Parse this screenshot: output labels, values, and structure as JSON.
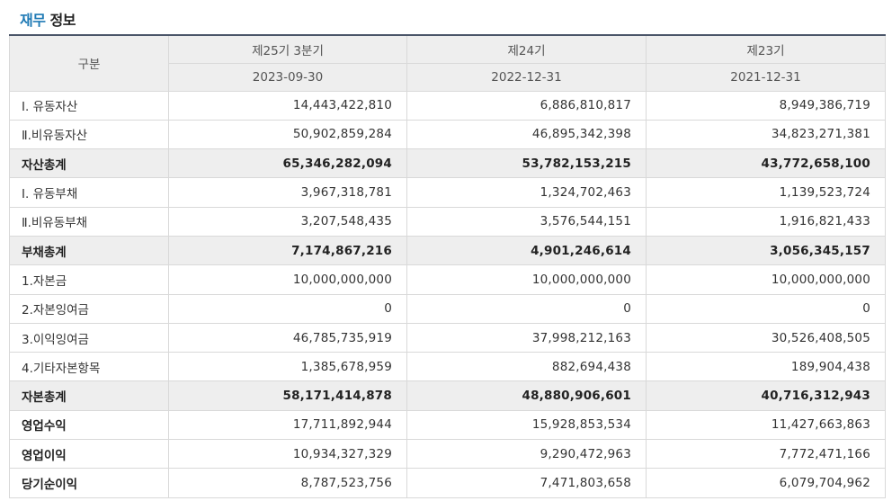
{
  "section": {
    "title_accent": "재무",
    "title_rest": "정보"
  },
  "table": {
    "header": {
      "gubun": "구분",
      "periods": [
        {
          "name": "제25기 3분기",
          "date": "2023-09-30"
        },
        {
          "name": "제24기",
          "date": "2022-12-31"
        },
        {
          "name": "제23기",
          "date": "2021-12-31"
        }
      ]
    },
    "rows": [
      {
        "label": "Ⅰ. 유동자산",
        "values": [
          "14,443,422,810",
          "6,886,810,817",
          "8,949,386,719"
        ],
        "total": false,
        "bold_label": false
      },
      {
        "label": "Ⅱ.비유동자산",
        "values": [
          "50,902,859,284",
          "46,895,342,398",
          "34,823,271,381"
        ],
        "total": false,
        "bold_label": false
      },
      {
        "label": "자산총계",
        "values": [
          "65,346,282,094",
          "53,782,153,215",
          "43,772,658,100"
        ],
        "total": true,
        "bold_label": true
      },
      {
        "label": "Ⅰ. 유동부채",
        "values": [
          "3,967,318,781",
          "1,324,702,463",
          "1,139,523,724"
        ],
        "total": false,
        "bold_label": false
      },
      {
        "label": "Ⅱ.비유동부채",
        "values": [
          "3,207,548,435",
          "3,576,544,151",
          "1,916,821,433"
        ],
        "total": false,
        "bold_label": false
      },
      {
        "label": "부채총계",
        "values": [
          "7,174,867,216",
          "4,901,246,614",
          "3,056,345,157"
        ],
        "total": true,
        "bold_label": true
      },
      {
        "label": "1.자본금",
        "values": [
          "10,000,000,000",
          "10,000,000,000",
          "10,000,000,000"
        ],
        "total": false,
        "bold_label": false
      },
      {
        "label": "2.자본잉여금",
        "values": [
          "0",
          "0",
          "0"
        ],
        "total": false,
        "bold_label": false
      },
      {
        "label": "3.이익잉여금",
        "values": [
          "46,785,735,919",
          "37,998,212,163",
          "30,526,408,505"
        ],
        "total": false,
        "bold_label": false
      },
      {
        "label": "4.기타자본항목",
        "values": [
          "1,385,678,959",
          "882,694,438",
          "189,904,438"
        ],
        "total": false,
        "bold_label": false
      },
      {
        "label": "자본총계",
        "values": [
          "58,171,414,878",
          "48,880,906,601",
          "40,716,312,943"
        ],
        "total": true,
        "bold_label": true
      },
      {
        "label": "영업수익",
        "values": [
          "17,711,892,944",
          "15,928,853,534",
          "11,427,663,863"
        ],
        "total": false,
        "bold_label": true
      },
      {
        "label": "영업이익",
        "values": [
          "10,934,327,329",
          "9,290,472,963",
          "7,772,471,166"
        ],
        "total": false,
        "bold_label": true
      },
      {
        "label": "당기순이익",
        "values": [
          "8,787,523,756",
          "7,471,803,658",
          "6,079,704,962"
        ],
        "total": false,
        "bold_label": true
      }
    ]
  }
}
